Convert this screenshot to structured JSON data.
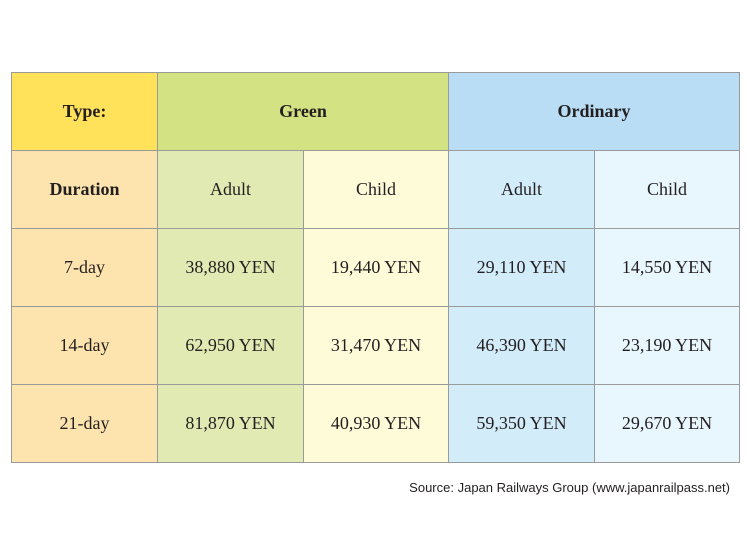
{
  "header": {
    "type_label": "Type:",
    "green_label": "Green",
    "ordinary_label": "Ordinary"
  },
  "subheader": {
    "duration_label": "Duration",
    "green_adult": "Adult",
    "green_child": "Child",
    "ordinary_adult": "Adult",
    "ordinary_child": "Child"
  },
  "rows": [
    {
      "duration": "7-day",
      "green_adult": "38,880 YEN",
      "green_child": "19,440 YEN",
      "ordinary_adult": "29,110 YEN",
      "ordinary_child": "14,550 YEN"
    },
    {
      "duration": "14-day",
      "green_adult": "62,950 YEN",
      "green_child": "31,470 YEN",
      "ordinary_adult": "46,390 YEN",
      "ordinary_child": "23,190 YEN"
    },
    {
      "duration": "21-day",
      "green_adult": "81,870 YEN",
      "green_child": "40,930 YEN",
      "ordinary_adult": "59,350 YEN",
      "ordinary_child": "29,670 YEN"
    }
  ],
  "source": "Source: Japan Railways Group (www.japanrailpass.net)",
  "colors": {
    "type_label_bg": "#ffe15a",
    "duration_bg": "#fde3ad",
    "green_header_bg": "#d3e282",
    "green_adult_bg": "#e1eab3",
    "green_child_bg": "#fefbd9",
    "ordinary_header_bg": "#b9ddf5",
    "ordinary_adult_bg": "#d3ecfa",
    "ordinary_child_bg": "#e8f6fd"
  }
}
